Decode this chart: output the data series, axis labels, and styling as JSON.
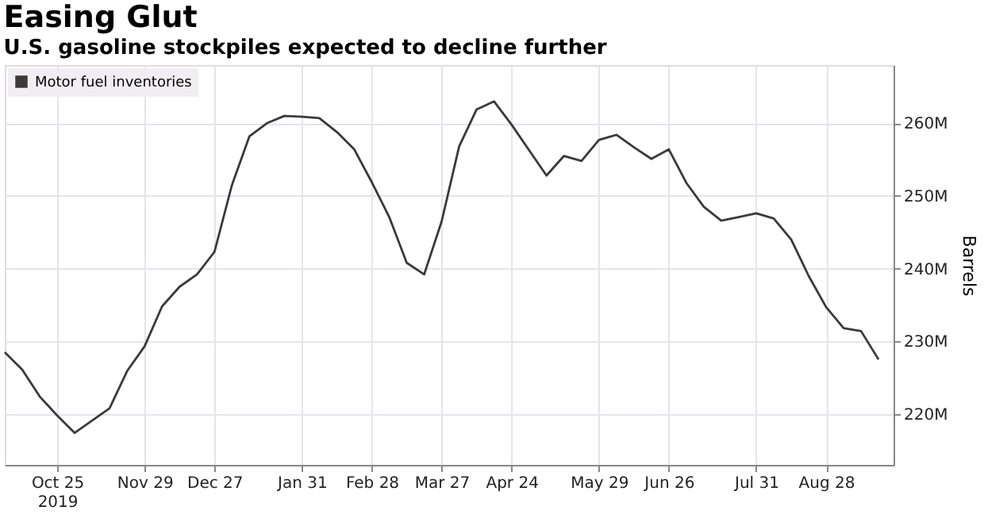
{
  "chart_data": {
    "type": "line",
    "title": "Easing Glut",
    "subtitle": "U.S. gasoline stockpiles expected to decline further",
    "ylabel": "Barrels",
    "x": [
      "2019-10-04",
      "2019-10-11",
      "2019-10-18",
      "2019-10-25",
      "2019-11-01",
      "2019-11-08",
      "2019-11-15",
      "2019-11-22",
      "2019-11-29",
      "2019-12-06",
      "2019-12-13",
      "2019-12-20",
      "2019-12-27",
      "2020-01-03",
      "2020-01-10",
      "2020-01-17",
      "2020-01-24",
      "2020-01-31",
      "2020-02-07",
      "2020-02-14",
      "2020-02-21",
      "2020-02-28",
      "2020-03-06",
      "2020-03-13",
      "2020-03-20",
      "2020-03-27",
      "2020-04-03",
      "2020-04-10",
      "2020-04-17",
      "2020-04-24",
      "2020-05-01",
      "2020-05-08",
      "2020-05-15",
      "2020-05-22",
      "2020-05-29",
      "2020-06-05",
      "2020-06-12",
      "2020-06-19",
      "2020-06-26",
      "2020-07-03",
      "2020-07-10",
      "2020-07-17",
      "2020-07-24",
      "2020-07-31",
      "2020-08-07",
      "2020-08-14",
      "2020-08-21",
      "2020-08-28",
      "2020-09-04",
      "2020-09-11",
      "2020-09-18"
    ],
    "series": [
      {
        "name": "Motor fuel inventories",
        "color": "#3a3a3a",
        "values": [
          228.5,
          226.1,
          222.4,
          219.8,
          217.4,
          219.1,
          220.8,
          225.9,
          229.3,
          234.8,
          237.5,
          239.2,
          242.3,
          251.5,
          258.2,
          260.0,
          261.0,
          260.9,
          260.7,
          258.8,
          256.4,
          251.9,
          247.1,
          240.8,
          239.2,
          246.5,
          256.8,
          261.9,
          263.0,
          259.8,
          256.3,
          252.8,
          255.5,
          254.8,
          257.7,
          258.4,
          256.7,
          255.1,
          256.4,
          251.8,
          248.5,
          246.6,
          247.1,
          247.6,
          246.9,
          244.0,
          239.0,
          234.7,
          231.8,
          231.4,
          227.5
        ]
      }
    ],
    "xlim": [
      "2019-10-04",
      "2020-09-24"
    ],
    "xticks": [
      {
        "value": "2019-10-25",
        "label": "Oct 25\n2019"
      },
      {
        "value": "2019-11-29",
        "label": "Nov 29"
      },
      {
        "value": "2019-12-27",
        "label": "Dec 27"
      },
      {
        "value": "2020-01-31",
        "label": "Jan 31"
      },
      {
        "value": "2020-02-28",
        "label": "Feb 28"
      },
      {
        "value": "2020-03-27",
        "label": "Mar 27"
      },
      {
        "value": "2020-04-24",
        "label": "Apr 24"
      },
      {
        "value": "2020-05-29",
        "label": "May 29"
      },
      {
        "value": "2020-06-26",
        "label": "Jun 26"
      },
      {
        "value": "2020-07-31",
        "label": "Jul 31"
      },
      {
        "value": "2020-08-28",
        "label": "Aug 28"
      }
    ],
    "ylim": [
      213,
      268
    ],
    "yticks": [
      {
        "value": 220,
        "label": "220M"
      },
      {
        "value": 230,
        "label": "230M"
      },
      {
        "value": 240,
        "label": "240M"
      },
      {
        "value": 250,
        "label": "250M"
      },
      {
        "value": 260,
        "label": "260M"
      }
    ],
    "grid": true,
    "legend": "top left",
    "line_style": "solid",
    "marker": "none"
  }
}
